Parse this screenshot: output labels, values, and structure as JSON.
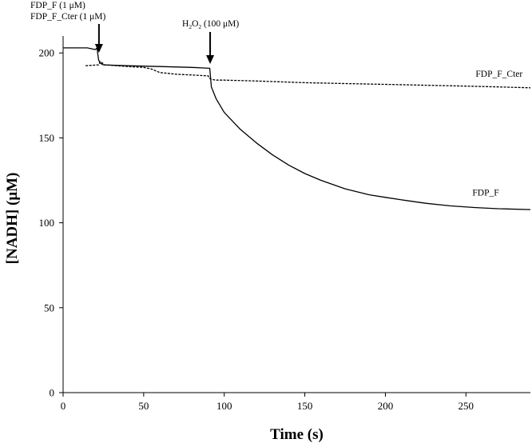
{
  "chart_data": {
    "type": "line",
    "xlabel": "Time (s)",
    "ylabel": "[NADH] (μM)",
    "xlim": [
      0,
      290
    ],
    "ylim": [
      0,
      210
    ],
    "xticks": [
      0,
      50,
      100,
      150,
      200,
      250
    ],
    "yticks": [
      0,
      50,
      100,
      150,
      200
    ],
    "grid": false,
    "series": [
      {
        "name": "FDP_F",
        "style": "solid",
        "x": [
          0,
          15,
          20,
          21,
          22,
          23,
          25,
          40,
          60,
          80,
          91,
          92,
          95,
          100,
          110,
          120,
          130,
          140,
          150,
          160,
          175,
          190,
          200,
          210,
          225,
          240,
          255,
          270,
          290
        ],
        "y": [
          203,
          203,
          202,
          203,
          196,
          194,
          193,
          192.5,
          192,
          191.5,
          191,
          180,
          173,
          165,
          155,
          147,
          140,
          134,
          129,
          125,
          120,
          116.5,
          115,
          113.5,
          111.5,
          110,
          109,
          108.3,
          107.8
        ]
      },
      {
        "name": "FDP_F_Cter",
        "style": "dashed",
        "x": [
          14,
          22,
          23,
          26,
          40,
          50,
          55,
          60,
          65,
          70,
          80,
          90,
          91,
          92,
          95,
          100,
          120,
          150,
          175,
          200,
          225,
          250,
          270,
          290
        ],
        "y": [
          192.5,
          193,
          195,
          193,
          192,
          191.5,
          190.5,
          188.5,
          188,
          187.5,
          187,
          186.5,
          185,
          184.5,
          184,
          184,
          183.5,
          182.5,
          182,
          181.5,
          181,
          180.5,
          180,
          179.5
        ]
      }
    ],
    "series_labels": [
      {
        "text": "FDP_F_Cter",
        "x": 256,
        "y": 186
      },
      {
        "text": "FDP_F",
        "x": 254,
        "y": 116
      }
    ],
    "annotations": [
      {
        "lines": [
          "FDP_F (1 μM)",
          "FDP_F_Cter (1 μM)"
        ],
        "arrow_x": 22
      },
      {
        "reagent": "H",
        "subscript_1": "2",
        "reagent_2": "O",
        "subscript_2": "2",
        "amount": "(100 μM)",
        "arrow_x": 91
      }
    ]
  }
}
